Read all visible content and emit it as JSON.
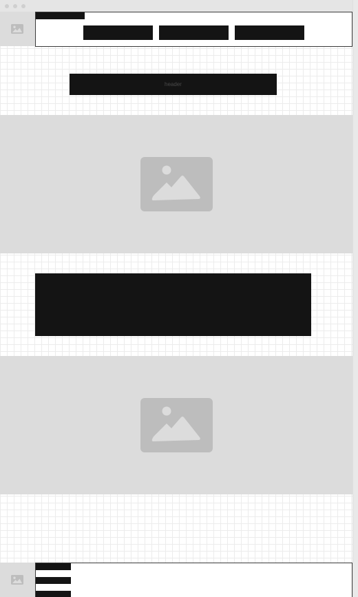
{
  "window": {
    "controls": [
      "close",
      "minimize",
      "maximize"
    ]
  },
  "nav": {
    "logo_icon": "image-placeholder-icon",
    "tab_label": "",
    "items": [
      {
        "label": ""
      },
      {
        "label": ""
      },
      {
        "label": ""
      }
    ]
  },
  "header": {
    "label": "header"
  },
  "hero_images": [
    {
      "icon": "image-placeholder-icon"
    },
    {
      "icon": "image-placeholder-icon"
    }
  ],
  "content": {
    "text": ""
  },
  "footer": {
    "logo_icon": "image-placeholder-icon",
    "links": [
      {
        "label": ""
      },
      {
        "label": ""
      },
      {
        "label": ""
      }
    ]
  },
  "colors": {
    "block": "#141414",
    "placeholder_bg": "#dcdcdc",
    "placeholder_icon": "#bdbdbd",
    "grid": "#ececec"
  }
}
